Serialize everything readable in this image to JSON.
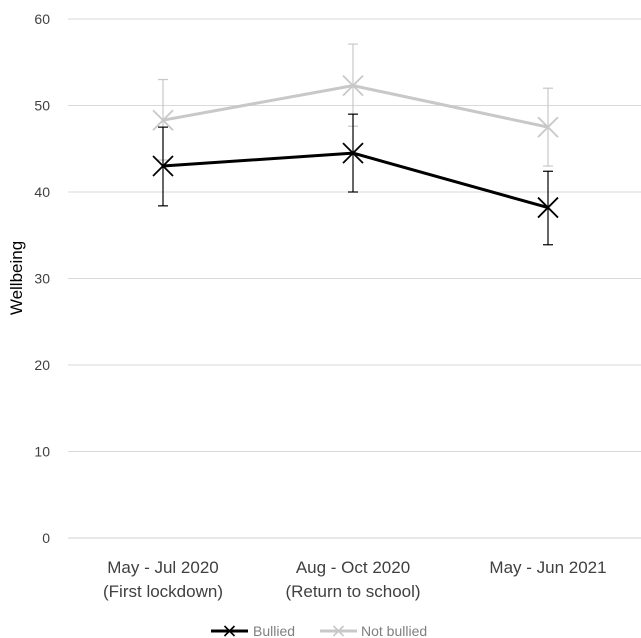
{
  "chart_data": {
    "type": "line",
    "title": "",
    "xlabel": "",
    "ylabel": "Wellbeing",
    "ylim": [
      0,
      60
    ],
    "yticks": [
      0,
      10,
      20,
      30,
      40,
      50,
      60
    ],
    "categories": [
      [
        "May - Jul 2020",
        "(First lockdown)"
      ],
      [
        "Aug - Oct 2020",
        "(Return to school)"
      ],
      [
        "May - Jun 2021"
      ]
    ],
    "grid": true,
    "legend_position": "bottom",
    "series": [
      {
        "name": "Bullied",
        "color": "#000000",
        "marker": "x",
        "values": [
          43.0,
          44.5,
          38.2
        ],
        "error_low": [
          38.4,
          40.0,
          33.9
        ],
        "error_high": [
          47.5,
          49.0,
          42.4
        ]
      },
      {
        "name": "Not bullied",
        "color": "#c8c8c8",
        "marker": "x",
        "values": [
          48.3,
          52.3,
          47.5
        ],
        "error_low": [
          43.7,
          47.6,
          43.0
        ],
        "error_high": [
          53.0,
          57.1,
          52.0
        ]
      }
    ]
  }
}
